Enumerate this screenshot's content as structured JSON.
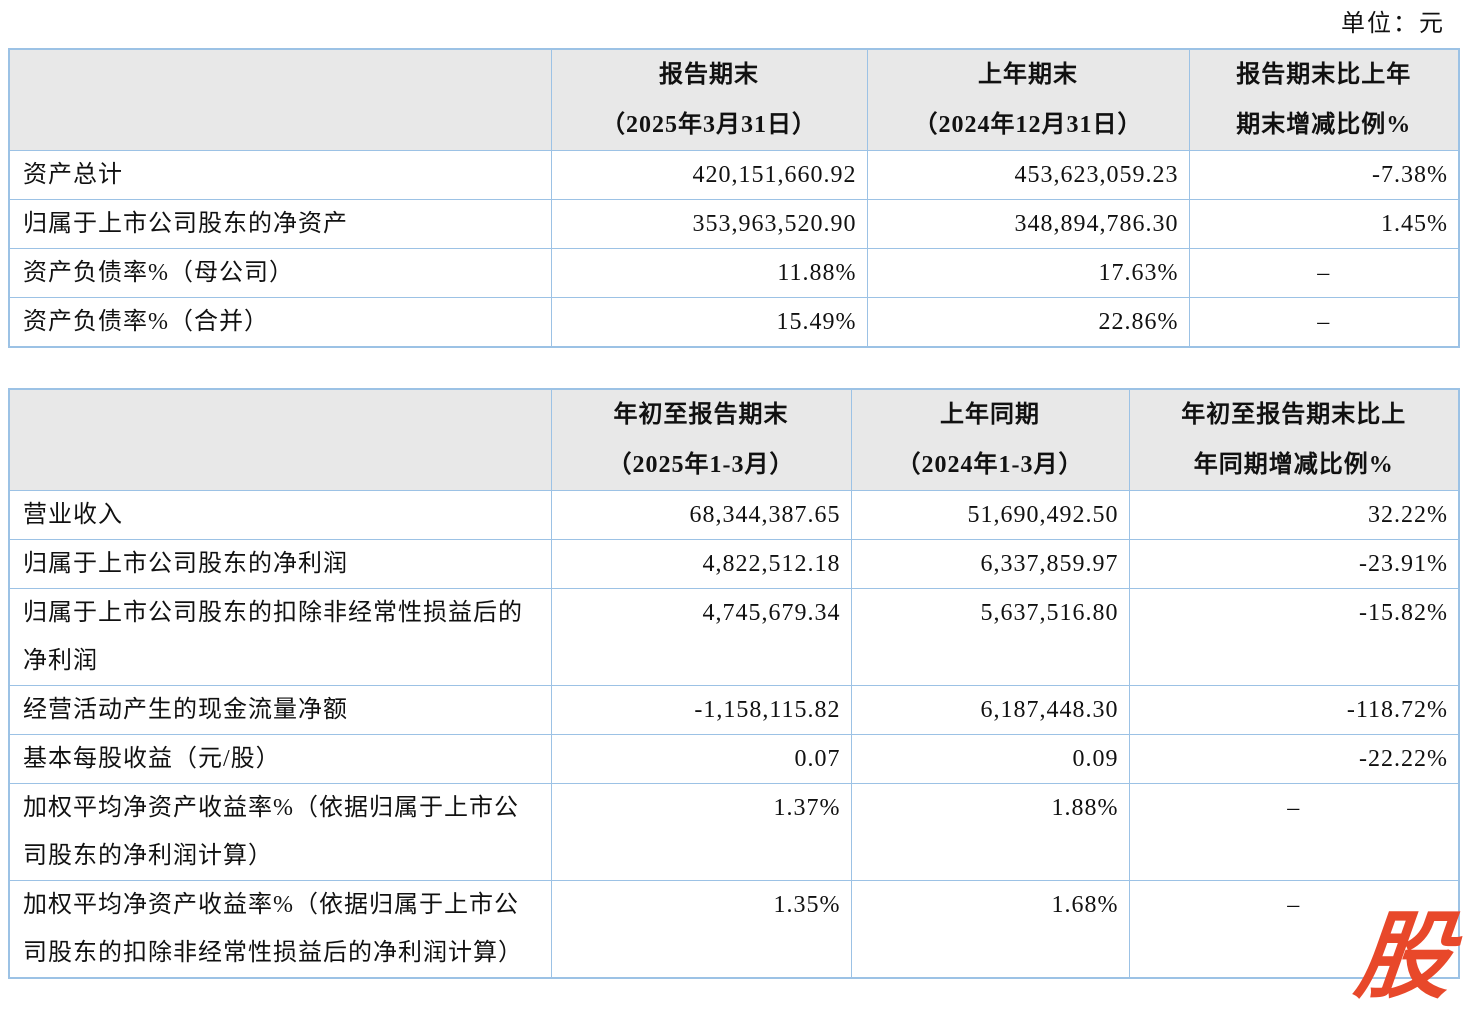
{
  "page": {
    "unit_label": "单位：元",
    "watermark": "股",
    "colors": {
      "border_blue": "#9cc2e5",
      "header_gray": "#e8e8e8",
      "watermark_red": "#e8482a",
      "text": "#111111"
    }
  },
  "balance_table": {
    "header": {
      "label_col": "",
      "current_line1": "报告期末",
      "current_line2": "（2025年3月31日）",
      "prior_line1": "上年期末",
      "prior_line2": "（2024年12月31日）",
      "change_line1": "报告期末比上年",
      "change_line2": "期末增减比例%"
    },
    "rows": [
      {
        "label": "资产总计",
        "current": "420,151,660.92",
        "prior": "453,623,059.23",
        "change": "-7.38%"
      },
      {
        "label": "归属于上市公司股东的净资产",
        "current": "353,963,520.90",
        "prior": "348,894,786.30",
        "change": "1.45%"
      },
      {
        "label": "资产负债率%（母公司）",
        "current": "11.88%",
        "prior": "17.63%",
        "change": "–"
      },
      {
        "label": "资产负债率%（合并）",
        "current": "15.49%",
        "prior": "22.86%",
        "change": "–"
      }
    ]
  },
  "income_table": {
    "header": {
      "label_col": "",
      "current_line1": "年初至报告期末",
      "current_line2": "（2025年1-3月）",
      "prior_line1": "上年同期",
      "prior_line2": "（2024年1-3月）",
      "change_line1": "年初至报告期末比上",
      "change_line2": "年同期增减比例%"
    },
    "rows": [
      {
        "label": "营业收入",
        "current": "68,344,387.65",
        "prior": "51,690,492.50",
        "change": "32.22%"
      },
      {
        "label": "归属于上市公司股东的净利润",
        "current": "4,822,512.18",
        "prior": "6,337,859.97",
        "change": "-23.91%"
      },
      {
        "label": "归属于上市公司股东的扣除非经常性损益后的净利润",
        "current": "4,745,679.34",
        "prior": "5,637,516.80",
        "change": "-15.82%"
      },
      {
        "label": "经营活动产生的现金流量净额",
        "current": "-1,158,115.82",
        "prior": "6,187,448.30",
        "change": "-118.72%"
      },
      {
        "label": "基本每股收益（元/股）",
        "current": "0.07",
        "prior": "0.09",
        "change": "-22.22%"
      },
      {
        "label": "加权平均净资产收益率%（依据归属于上市公司股东的净利润计算）",
        "current": "1.37%",
        "prior": "1.88%",
        "change": "–"
      },
      {
        "label": "加权平均净资产收益率%（依据归属于上市公司股东的扣除非经常性损益后的净利润计算）",
        "current": "1.35%",
        "prior": "1.68%",
        "change": "–"
      }
    ]
  }
}
